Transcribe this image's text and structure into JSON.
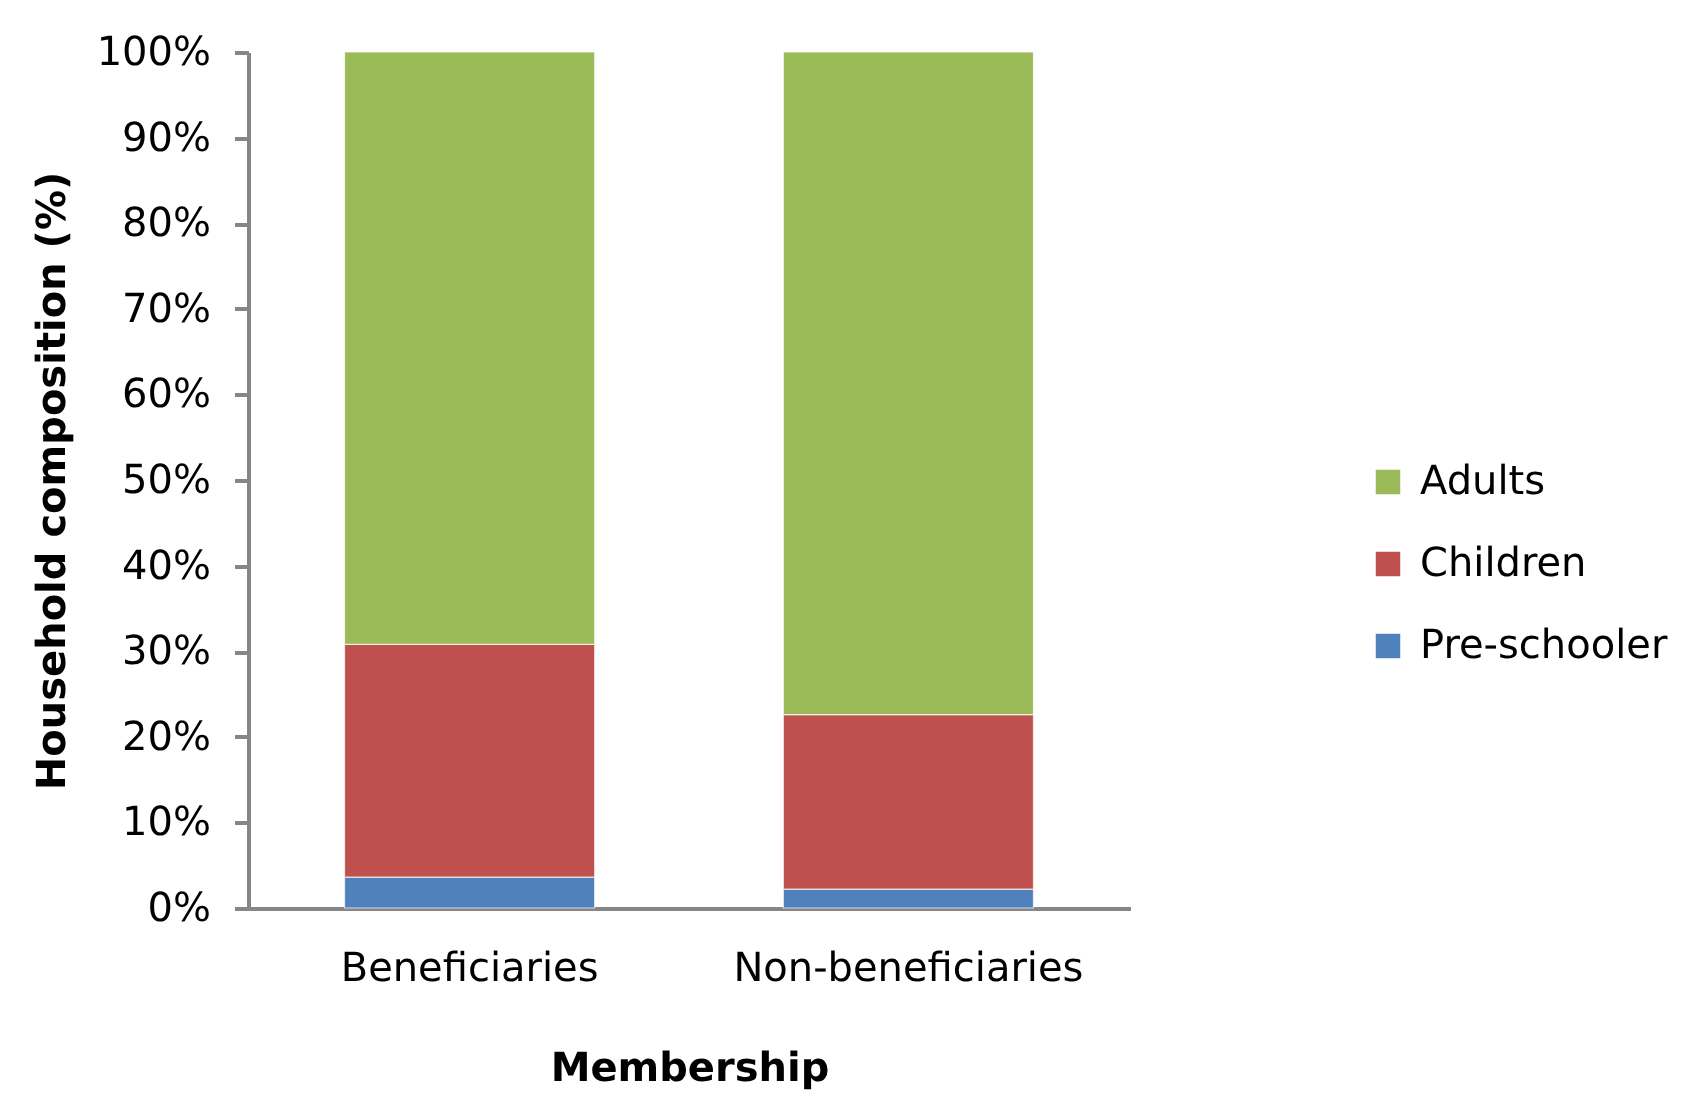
{
  "chart_data": {
    "type": "bar",
    "xlabel": "Membership",
    "ylabel": "Household composition (%)",
    "categories": [
      "Beneficiaries",
      "Non-beneficiaries"
    ],
    "series": [
      {
        "name": "Pre-schooler",
        "color": "#4f81bd",
        "values": [
          3.6,
          2.2
        ]
      },
      {
        "name": "Children",
        "color": "#c0504d",
        "values": [
          27.2,
          20.4
        ]
      },
      {
        "name": "Adults",
        "color": "#9bbb59",
        "values": [
          69.2,
          77.4
        ]
      }
    ],
    "stacked": true,
    "ylim": [
      0,
      100
    ],
    "yticks": [
      {
        "value": 0,
        "label": "0%"
      },
      {
        "value": 10,
        "label": "10%"
      },
      {
        "value": 20,
        "label": "20%"
      },
      {
        "value": 30,
        "label": "30%"
      },
      {
        "value": 40,
        "label": "40%"
      },
      {
        "value": 50,
        "label": "50%"
      },
      {
        "value": 60,
        "label": "60%"
      },
      {
        "value": 70,
        "label": "70%"
      },
      {
        "value": 80,
        "label": "80%"
      },
      {
        "value": 90,
        "label": "90%"
      },
      {
        "value": 100,
        "label": "100%"
      }
    ],
    "grid": false,
    "legend": "right"
  }
}
